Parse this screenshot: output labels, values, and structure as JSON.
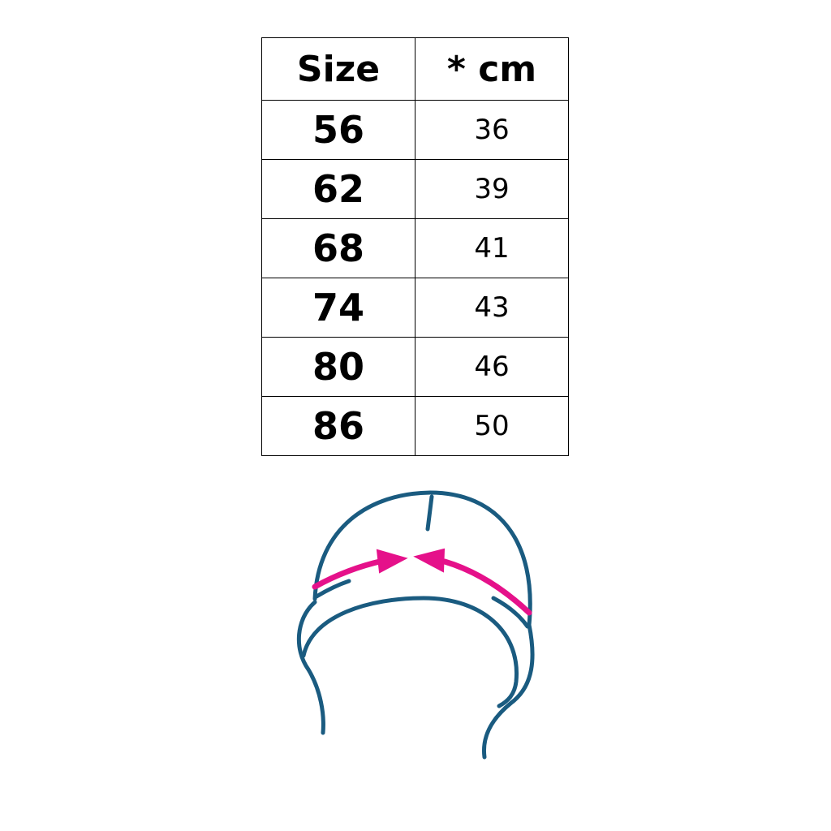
{
  "table": {
    "headers": [
      "Size",
      "* cm"
    ],
    "rows": [
      {
        "size": "56",
        "cm": "36"
      },
      {
        "size": "62",
        "cm": "39"
      },
      {
        "size": "68",
        "cm": "41"
      },
      {
        "size": "74",
        "cm": "43"
      },
      {
        "size": "80",
        "cm": "46"
      },
      {
        "size": "86",
        "cm": "50"
      }
    ]
  },
  "diagram": {
    "icon": "hat-measurement-icon",
    "line_color": "#1a5b80",
    "arrow_color": "#e5118a"
  }
}
